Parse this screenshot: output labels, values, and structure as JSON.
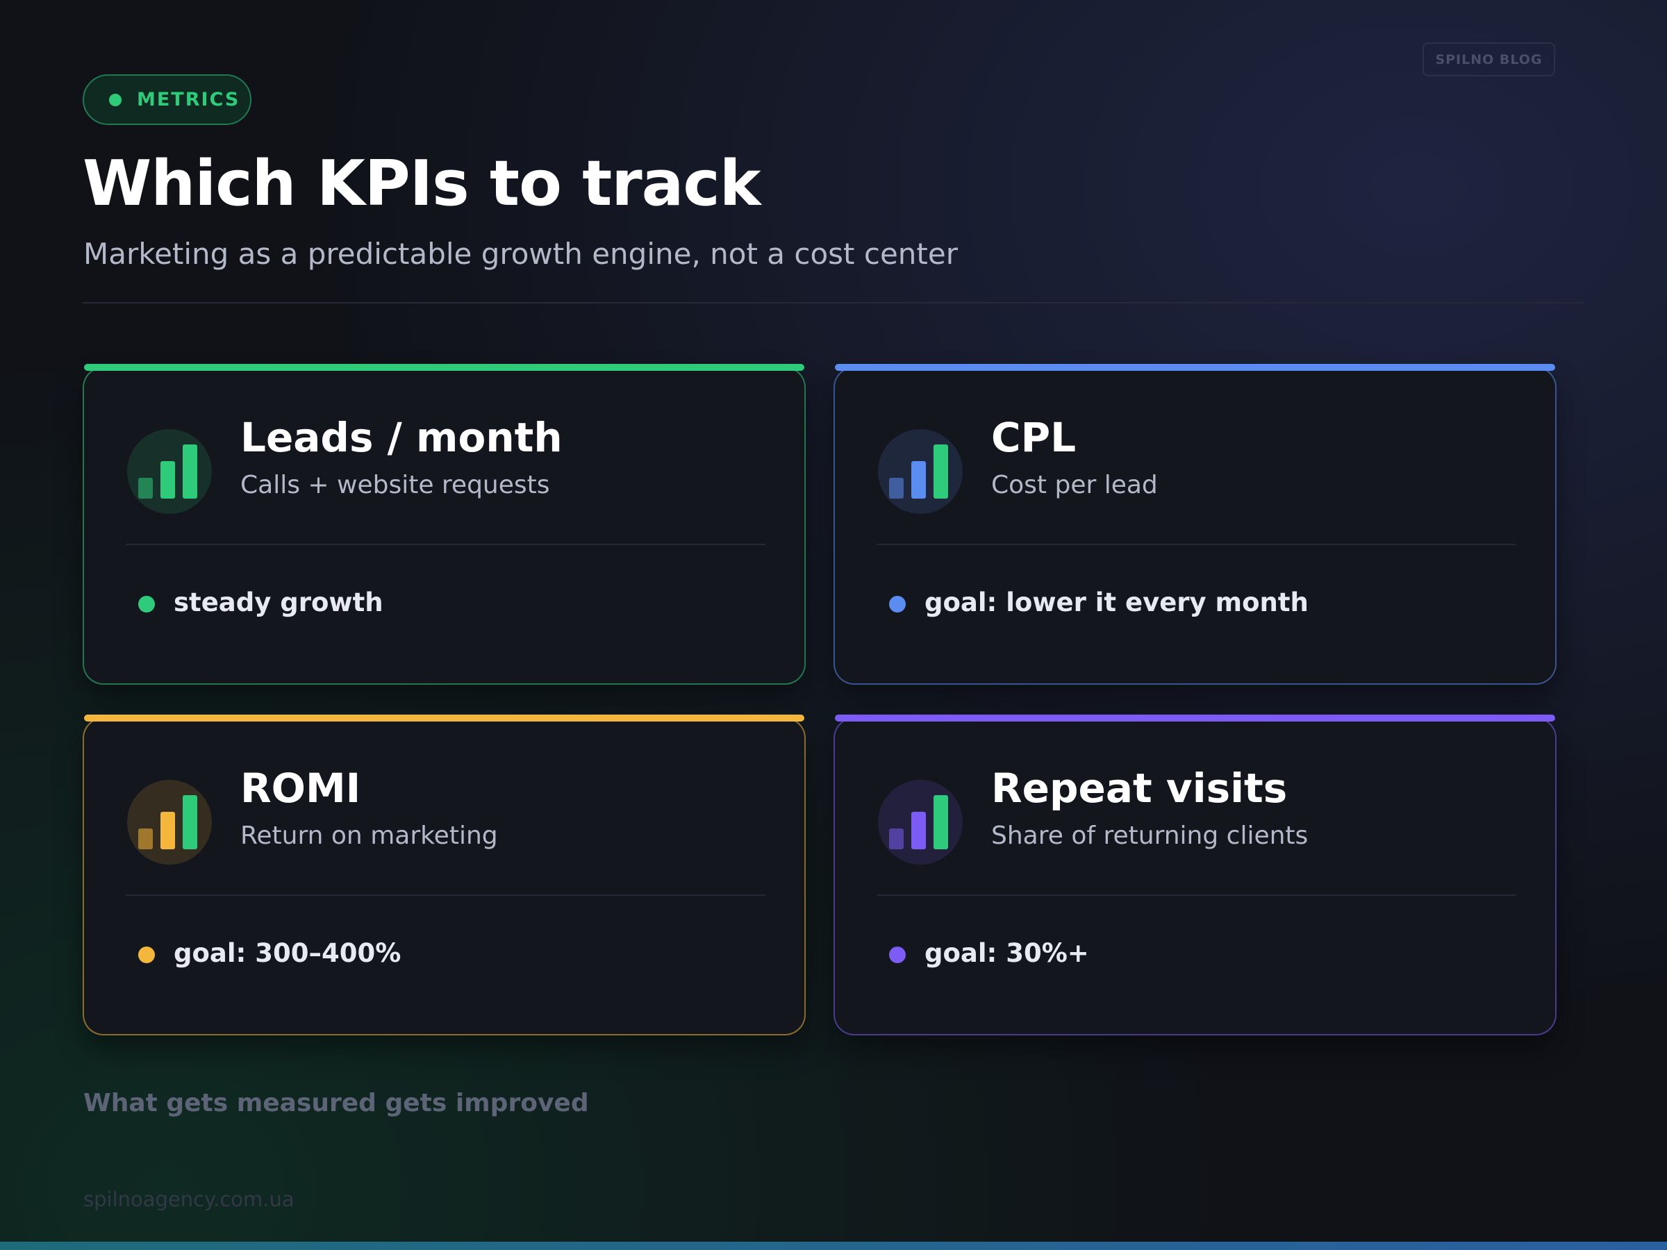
{
  "badge": "METRICS",
  "brand": "SPILNO BLOG",
  "title": "Which KPIs to track",
  "subtitle": "Marketing as a predictable growth engine, not a cost center",
  "cards": [
    {
      "title": "Leads / month",
      "subtitle": "Calls + website requests",
      "note": "steady growth",
      "color": "#2ecc7a"
    },
    {
      "title": "CPL",
      "subtitle": "Cost per lead",
      "note": "goal: lower it every month",
      "color": "#5b8cf0"
    },
    {
      "title": "ROMI",
      "subtitle": "Return on marketing",
      "note": "goal: 300–400%",
      "color": "#f5b73b"
    },
    {
      "title": "Repeat visits",
      "subtitle": "Share of returning clients",
      "note": "goal: 30%+",
      "color": "#7c5cf5"
    }
  ],
  "tagline": "What gets measured gets improved",
  "website": "spilnoagency.com.ua"
}
